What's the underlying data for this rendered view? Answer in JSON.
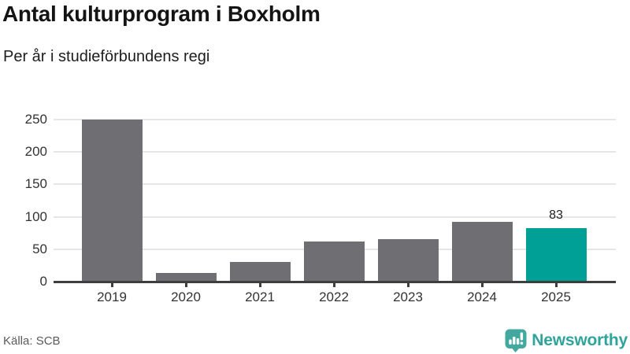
{
  "header": {
    "title": "Antal kulturprogram i Boxholm",
    "subtitle": "Per år i studieförbundens regi"
  },
  "chart_data": {
    "type": "bar",
    "title": "Antal kulturprogram i Boxholm",
    "subtitle": "Per år i studieförbundens regi",
    "categories": [
      "2019",
      "2020",
      "2021",
      "2022",
      "2023",
      "2024",
      "2025"
    ],
    "values": [
      250,
      13,
      30,
      62,
      66,
      92,
      83
    ],
    "highlight_index": 6,
    "value_labels": [
      {
        "category": "2025",
        "text": "83"
      }
    ],
    "xlabel": "",
    "ylabel": "",
    "ylim": [
      0,
      250
    ],
    "yticks": [
      0,
      50,
      100,
      150,
      200,
      250
    ],
    "grid": "horizontal-only",
    "legend": "none",
    "bar_color": "#6e6e73",
    "highlight_color": "#00a096"
  },
  "footer": {
    "source": "Källa: SCB",
    "brand": "Newsworthy"
  },
  "colors": {
    "background": "#ffffff",
    "bar_gray": "#6e6e73",
    "accent_teal": "#00a096",
    "logo_teal": "#43a89f",
    "brand_text_teal": "#2fa49b",
    "gridline": "#e6e6e6",
    "axis": "#3e3e3e",
    "title_text": "#141414",
    "tick_text": "#333333",
    "muted_text": "#5a5a5a"
  },
  "icons": {
    "brand_logo": "newsworthy-pin-barchart-icon"
  }
}
